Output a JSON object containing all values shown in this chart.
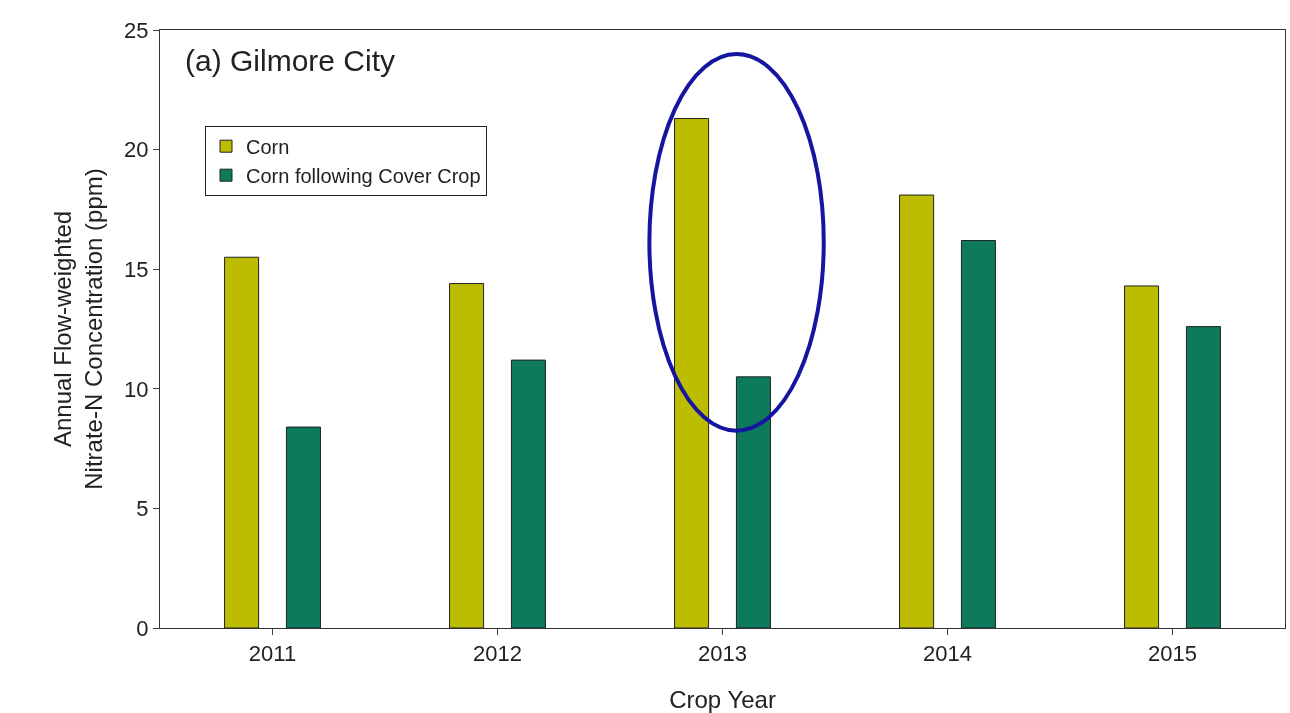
{
  "chart_data": {
    "type": "bar",
    "xlabel": "Crop Year",
    "ylabel": "Annual Flow-weighted\nNitrate-N Concentration (ppm)",
    "annotations": [
      "(a) Gilmore City"
    ],
    "categories": [
      "2011",
      "2012",
      "2013",
      "2014",
      "2015"
    ],
    "series": [
      {
        "name": "Corn",
        "color": "#bcbc00",
        "values": [
          15.5,
          14.4,
          21.3,
          18.1,
          14.3
        ]
      },
      {
        "name": "Corn following Cover Crop",
        "color": "#0d7a5c",
        "values": [
          8.4,
          11.2,
          10.5,
          16.2,
          12.6
        ]
      }
    ],
    "ylim": [
      0,
      25
    ],
    "yticks": [
      0,
      5,
      10,
      15,
      20,
      25
    ],
    "grid": false,
    "legend": "top left"
  }
}
